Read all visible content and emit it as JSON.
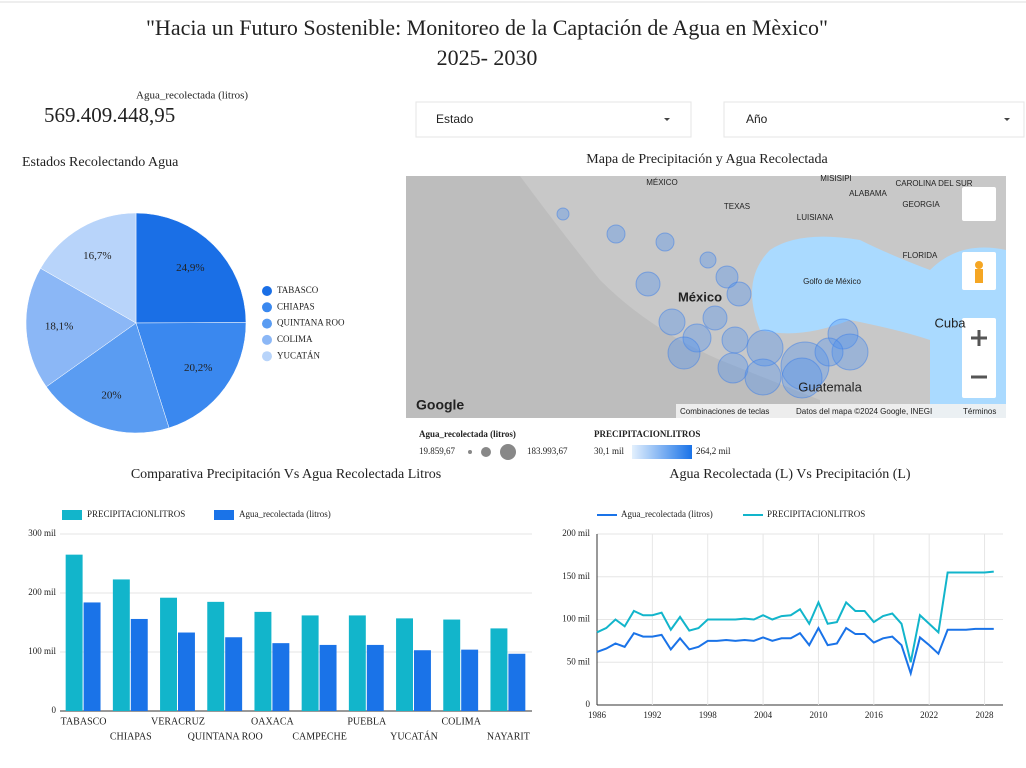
{
  "header": {
    "title": "\"Hacia un Futuro Sostenible: Monitoreo de la Captación de Agua en Mèxico\"",
    "subtitle": "2025- 2030"
  },
  "scorecard": {
    "label": "Agua_recolectada (litros)",
    "value": "569.409.448,95"
  },
  "filters": [
    "Estado",
    "Año"
  ],
  "map": {
    "title": "Mapa de Precipitación y Agua Recolectada",
    "labels": [
      "MÉXICO",
      "MISISIPI",
      "ALABAMA",
      "GEORGIA",
      "CAROLINA DEL SUR",
      "TEXAS",
      "LUISIANA",
      "FLORIDA",
      "Golfo de México",
      "México",
      "Cuba",
      "Guatemala"
    ],
    "footer": [
      "Google",
      "Combinaciones de teclas",
      "Datos del mapa ©2024 Google, INEGI",
      "Términos"
    ],
    "legend": {
      "size_title": "Agua_recolectada (litros)",
      "size_min": "19.859,67",
      "size_max": "183.993,67",
      "color_title": "PRECIPITACIONLITROS",
      "color_min": "30,1 mil",
      "color_max": "264,2 mil"
    }
  },
  "chart_data": [
    {
      "type": "pie",
      "title": "Estados Recolectando Agua",
      "categories": [
        "TABASCO",
        "CHIAPAS",
        "QUINTANA ROO",
        "COLIMA",
        "YUCATÁN"
      ],
      "values": [
        24.9,
        20.2,
        20,
        18.1,
        16.7
      ],
      "value_labels": [
        "24,9%",
        "20,2%",
        "20%",
        "18,1%",
        "16,7%"
      ],
      "colors": [
        "#1a6fe6",
        "#3a88ef",
        "#5a9cf2",
        "#8bb7f6",
        "#b8d4fa"
      ],
      "legend": "right"
    },
    {
      "type": "bar",
      "title": "Comparativa Precipitación Vs Agua Recolectada Litros",
      "categories": [
        "TABASCO",
        "CHIAPAS",
        "VERACRUZ",
        "QUINTANA ROO",
        "OAXACA",
        "CAMPECHE",
        "PUEBLA",
        "YUCATÁN",
        "COLIMA",
        "NAYARIT"
      ],
      "series": [
        {
          "name": "PRECIPITACIONLITROS",
          "color": "#12b5cb",
          "values": [
            265000,
            223000,
            192000,
            185000,
            168000,
            162000,
            162000,
            157000,
            155000,
            140000
          ]
        },
        {
          "name": "Agua_recolectada (litros)",
          "color": "#1a73e8",
          "values": [
            183993.67,
            156000,
            133000,
            125000,
            115000,
            112000,
            112000,
            103000,
            104000,
            97000
          ]
        }
      ],
      "ylim": [
        0,
        300000
      ],
      "yticks": [
        0,
        {
          "value": 100000,
          "label": "100 mil"
        },
        {
          "value": 200000,
          "label": "200 mil"
        },
        {
          "value": 300000,
          "label": "300 mil"
        }
      ],
      "grid": true,
      "legend": "top"
    },
    {
      "type": "line",
      "title": "Agua Recolectada (L) Vs Precipitación (L)",
      "x": [
        1986,
        1987,
        1988,
        1989,
        1990,
        1991,
        1992,
        1993,
        1994,
        1995,
        1996,
        1997,
        1998,
        1999,
        2000,
        2001,
        2002,
        2003,
        2004,
        2005,
        2006,
        2007,
        2008,
        2009,
        2010,
        2011,
        2012,
        2013,
        2014,
        2015,
        2016,
        2017,
        2018,
        2019,
        2020,
        2021,
        2022,
        2023,
        2024,
        2025,
        2026,
        2027,
        2028,
        2029
      ],
      "series": [
        {
          "name": "Agua_recolectada (litros)",
          "color": "#1a73e8",
          "values": [
            62000,
            66000,
            72000,
            68000,
            84000,
            80000,
            80000,
            82000,
            65000,
            78000,
            65000,
            68000,
            75000,
            75000,
            76000,
            75000,
            76000,
            75000,
            79000,
            75000,
            78000,
            78000,
            84000,
            70000,
            90000,
            70000,
            72000,
            90000,
            83000,
            83000,
            73000,
            78000,
            80000,
            70000,
            37000,
            79000,
            70000,
            60000,
            88000,
            88000,
            88000,
            89000,
            89000,
            89000
          ]
        },
        {
          "name": "PRECIPITACIONLITROS",
          "color": "#12b5cb",
          "values": [
            85000,
            90000,
            100000,
            92000,
            110000,
            105000,
            105000,
            108000,
            88000,
            103000,
            87000,
            90000,
            100000,
            100000,
            100000,
            100000,
            101000,
            100000,
            105000,
            100000,
            104000,
            105000,
            112000,
            95000,
            120000,
            95000,
            97000,
            120000,
            110000,
            110000,
            97000,
            104000,
            107000,
            95000,
            50000,
            105000,
            95000,
            85000,
            155000,
            155000,
            155000,
            155000,
            155000,
            156000
          ]
        }
      ],
      "xlim": [
        1986,
        2030
      ],
      "xticks": [
        1986,
        1992,
        1998,
        2004,
        2010,
        2016,
        2022,
        2028
      ],
      "ylim": [
        0,
        200000
      ],
      "yticks": [
        0,
        {
          "value": 50000,
          "label": "50 mil"
        },
        {
          "value": 100000,
          "label": "100 mil"
        },
        {
          "value": 150000,
          "label": "150 mil"
        },
        {
          "value": 200000,
          "label": "200 mil"
        }
      ],
      "grid": true,
      "legend": "top"
    }
  ]
}
